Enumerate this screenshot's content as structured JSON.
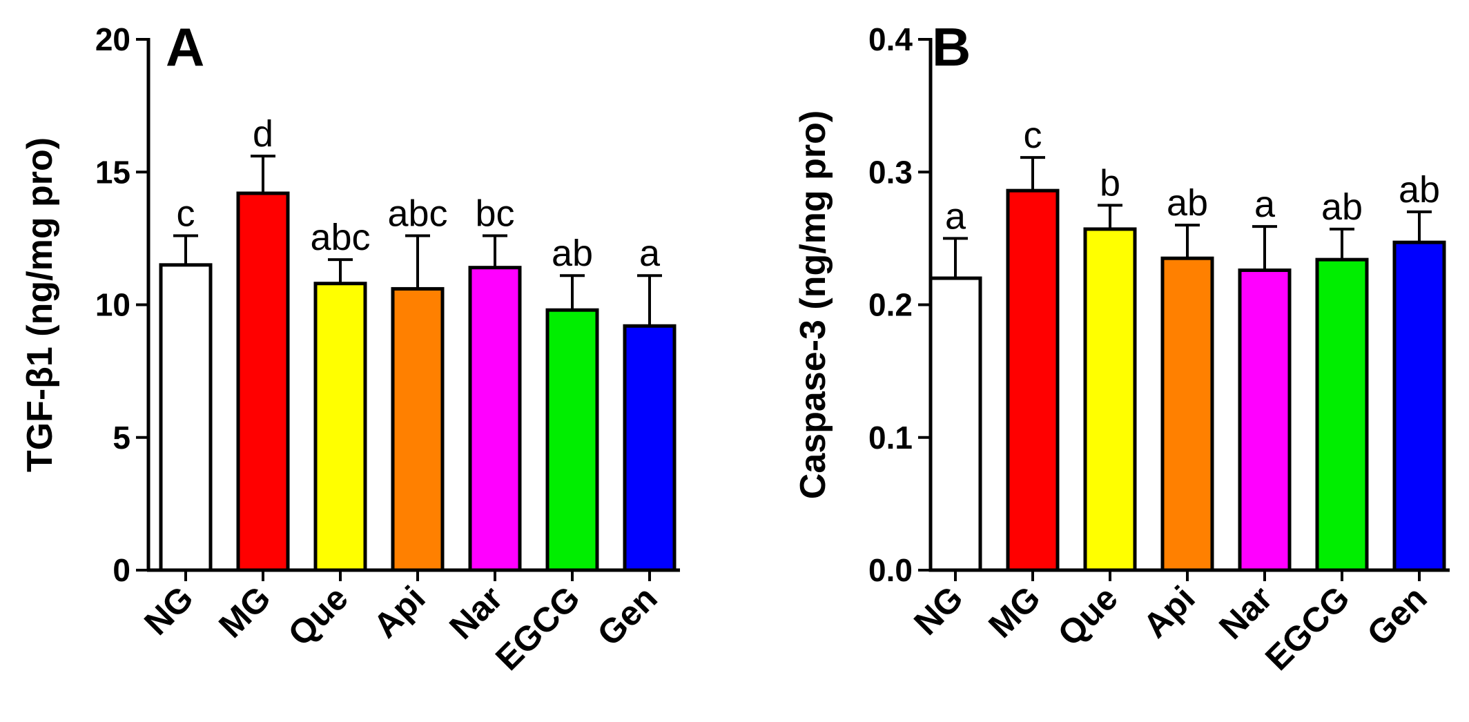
{
  "chart_data": [
    {
      "type": "bar",
      "panel": "A",
      "categories": [
        "NG",
        "MG",
        "Que",
        "Api",
        "Nar",
        "EGCG",
        "Gen"
      ],
      "values": [
        11.5,
        14.2,
        10.8,
        10.6,
        11.4,
        9.8,
        9.2
      ],
      "errors": [
        1.1,
        1.4,
        0.9,
        2.0,
        1.2,
        1.3,
        1.9
      ],
      "significance": [
        "c",
        "d",
        "abc",
        "abc",
        "bc",
        "ab",
        "a"
      ],
      "colors": [
        "#ffffff",
        "#ff0000",
        "#ffff00",
        "#ff8000",
        "#ff00ff",
        "#00ee00",
        "#0000ff"
      ],
      "ylabel": "TGF-β1 (ng/mg pro)",
      "ylim": [
        0,
        20
      ],
      "yticks": [
        0,
        5,
        10,
        15,
        20
      ],
      "ytick_labels": [
        "0",
        "5",
        "10",
        "15",
        "20"
      ],
      "xlabel": "",
      "grid": false
    },
    {
      "type": "bar",
      "panel": "B",
      "categories": [
        "NG",
        "MG",
        "Que",
        "Api",
        "Nar",
        "EGCG",
        "Gen"
      ],
      "values": [
        0.22,
        0.286,
        0.257,
        0.235,
        0.226,
        0.234,
        0.247
      ],
      "errors": [
        0.03,
        0.025,
        0.018,
        0.025,
        0.033,
        0.023,
        0.023
      ],
      "significance": [
        "a",
        "c",
        "b",
        "ab",
        "a",
        "ab",
        "ab"
      ],
      "colors": [
        "#ffffff",
        "#ff0000",
        "#ffff00",
        "#ff8000",
        "#ff00ff",
        "#00ee00",
        "#0000ff"
      ],
      "ylabel": "Caspase-3 (ng/mg pro)",
      "ylim": [
        0,
        0.4
      ],
      "yticks": [
        0,
        0.1,
        0.2,
        0.3,
        0.4
      ],
      "ytick_labels": [
        "0.0",
        "0.1",
        "0.2",
        "0.3",
        "0.4"
      ],
      "xlabel": "",
      "grid": false
    }
  ]
}
